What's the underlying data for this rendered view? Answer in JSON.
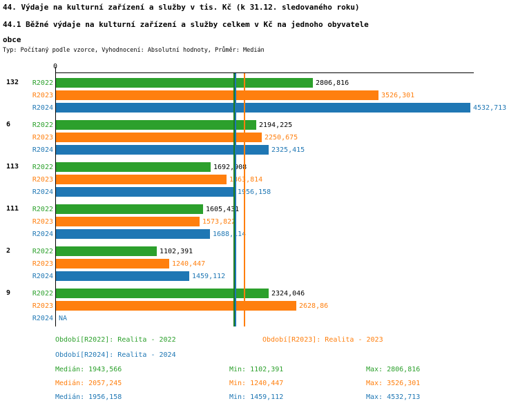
{
  "chart_data": {
    "type": "bar",
    "orientation": "horizontal",
    "title": "44. Výdaje na kulturní zařízení a služby v tis. Kč (k 31.12. sledovaného roku)",
    "subtitle": "44.1 Běžné výdaje na kulturní zařízení a služby celkem v Kč na jednoho obyvatele obce",
    "note": "Typ: Počítaný podle vzorce, Vyhodnocení: Absolutní hodnoty, Průměr: Medián",
    "axis": {
      "origin_label": "0",
      "xlim": [
        0,
        4532.713
      ]
    },
    "grid": false,
    "legend_position": "bottom",
    "series": [
      {
        "id": "R2022",
        "name": "Realita - 2022",
        "bar_color": "#2ca02c",
        "value_label_color": "#000000",
        "median_line_color": "#1e7b1e"
      },
      {
        "id": "R2023",
        "name": "Realita - 2023",
        "bar_color": "#ff7f0e",
        "value_label_color": "#ff7f0e",
        "median_line_color": "#ff7f0e"
      },
      {
        "id": "R2024",
        "name": "Realita - 2024",
        "bar_color": "#1f77b4",
        "value_label_color": "#1f77b4",
        "median_line_color": "#1f77b4"
      }
    ],
    "groups": [
      {
        "label": "132",
        "values": [
          2806.816,
          3526.301,
          4532.713
        ],
        "value_labels": [
          "2806,816",
          "3526,301",
          "4532,713"
        ]
      },
      {
        "label": "6",
        "values": [
          2194.225,
          2250.675,
          2325.415
        ],
        "value_labels": [
          "2194,225",
          "2250,675",
          "2325,415"
        ]
      },
      {
        "label": "113",
        "values": [
          1692.908,
          1863.814,
          1956.158
        ],
        "value_labels": [
          "1692,908",
          "1863,814",
          "1956,158"
        ]
      },
      {
        "label": "111",
        "values": [
          1605.431,
          1573.822,
          1688.114
        ],
        "value_labels": [
          "1605,431",
          "1573,822",
          "1688,114"
        ]
      },
      {
        "label": "2",
        "values": [
          1102.391,
          1240.447,
          1459.112
        ],
        "value_labels": [
          "1102,391",
          "1240,447",
          "1459,112"
        ]
      },
      {
        "label": "9",
        "values": [
          2324.046,
          2628.86,
          null
        ],
        "value_labels": [
          "2324,046",
          "2628,86",
          "NA"
        ]
      }
    ],
    "median_lines": [
      {
        "series": "R2022",
        "value": 1943.566
      },
      {
        "series": "R2024",
        "value": 1956.158
      },
      {
        "series": "R2023",
        "value": 2057.245
      }
    ]
  },
  "legend": {
    "items": [
      {
        "label": "Období[R2022]: Realita - 2022",
        "color": "#2ca02c"
      },
      {
        "label": "Období[R2023]: Realita - 2023",
        "color": "#ff7f0e"
      },
      {
        "label": "Období[R2024]: Realita - 2024",
        "color": "#1f77b4"
      }
    ]
  },
  "stats": {
    "rows": [
      {
        "median": "Medián: 1943,566",
        "min": "Min: 1102,391",
        "max": "Max: 2806,816",
        "color": "#2ca02c"
      },
      {
        "median": "Medián: 2057,245",
        "min": "Min: 1240,447",
        "max": "Max: 3526,301",
        "color": "#ff7f0e"
      },
      {
        "median": "Medián: 1956,158",
        "min": "Min: 1459,112",
        "max": "Max: 4532,713",
        "color": "#1f77b4"
      }
    ]
  }
}
